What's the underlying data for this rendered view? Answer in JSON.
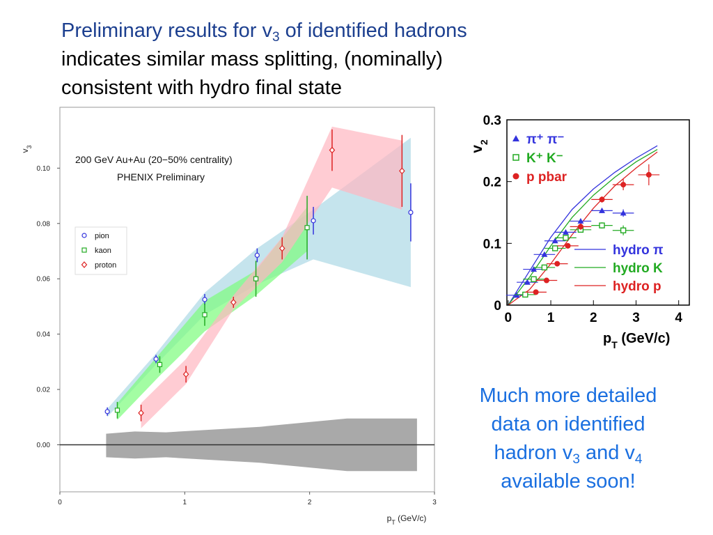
{
  "slide": {
    "title_line1_pre": "Preliminary results for v",
    "title_line1_sub": "3",
    "title_line1_post": " of identified hadrons",
    "title_line2": "indicates similar mass splitting, (nominally)",
    "title_line3": "consistent with hydro final state",
    "note_line1": "Much more detailed",
    "note_line2": "data on identified",
    "note_line3_pre": "hadron v",
    "note_line3_sub1": "3",
    "note_line3_mid": " and v",
    "note_line3_sub2": "4",
    "note_line4": "available soon!"
  },
  "colors": {
    "title": "#1c3f8f",
    "note": "#1a6fe0",
    "pion": "#3333dd",
    "kaon": "#22aa22",
    "proton": "#dd2222",
    "pion_band": "#add8e6",
    "kaon_band": "#7cfc7c",
    "proton_band": "#ffb6c1",
    "syst_band": "#a9a9a9"
  },
  "chart_data": [
    {
      "type": "scatter",
      "annotation1": "200 GeV Au+Au (20−50% centrality)",
      "annotation2": "PHENIX Preliminary",
      "xlabel": "p",
      "xlabel_sub": "T",
      "xlabel_unit": " (GeV/c)",
      "ylabel": "v",
      "ylabel_sub": "3",
      "xlim": [
        0,
        3
      ],
      "ylim": [
        -0.017,
        0.122
      ],
      "xticks": [
        0,
        1,
        2,
        3
      ],
      "yticks": [
        "0.00",
        "0.02",
        "0.04",
        "0.06",
        "0.08",
        "0.10"
      ],
      "legend": {
        "position": "center-left",
        "entries": [
          "pion",
          "kaon",
          "proton"
        ]
      },
      "series": [
        {
          "name": "pion",
          "marker": "circle",
          "x": [
            0.38,
            0.77,
            1.16,
            1.58,
            2.03,
            2.81
          ],
          "y": [
            0.012,
            0.031,
            0.0525,
            0.0685,
            0.081,
            0.084
          ],
          "err": [
            0.0015,
            0.0015,
            0.002,
            0.0025,
            0.005,
            0.0105
          ]
        },
        {
          "name": "kaon",
          "marker": "square",
          "x": [
            0.46,
            0.8,
            1.16,
            1.57,
            1.98
          ],
          "y": [
            0.0125,
            0.029,
            0.047,
            0.06,
            0.0785
          ],
          "err": [
            0.003,
            0.003,
            0.004,
            0.0065,
            0.0115
          ]
        },
        {
          "name": "proton",
          "marker": "diamond",
          "x": [
            0.65,
            1.01,
            1.39,
            1.78,
            2.18,
            2.74
          ],
          "y": [
            0.0115,
            0.0255,
            0.0515,
            0.071,
            0.1065,
            0.099
          ],
          "err": [
            0.003,
            0.003,
            0.002,
            0.004,
            0.0075,
            0.013
          ]
        }
      ],
      "bands": [
        {
          "name": "pion",
          "x": [
            0.38,
            0.77,
            1.16,
            1.58,
            2.03,
            2.81
          ],
          "lo": [
            0.01,
            0.029,
            0.047,
            0.058,
            0.067,
            0.057
          ],
          "hi": [
            0.013,
            0.033,
            0.055,
            0.071,
            0.085,
            0.111
          ]
        },
        {
          "name": "kaon",
          "x": [
            0.46,
            0.8,
            1.16,
            1.57,
            1.98
          ],
          "lo": [
            0.009,
            0.025,
            0.041,
            0.054,
            0.07
          ],
          "hi": [
            0.015,
            0.033,
            0.052,
            0.063,
            0.086
          ]
        },
        {
          "name": "proton",
          "x": [
            0.65,
            1.01,
            1.39,
            1.78,
            2.18,
            2.74
          ],
          "lo": [
            0.006,
            0.022,
            0.049,
            0.066,
            0.093,
            0.085
          ],
          "hi": [
            0.015,
            0.031,
            0.054,
            0.075,
            0.115,
            0.11
          ]
        },
        {
          "name": "systematic",
          "x": [
            0.37,
            0.6,
            0.85,
            1.6,
            2.3,
            2.86
          ],
          "lo": [
            -0.0045,
            -0.005,
            -0.0045,
            -0.0065,
            -0.0095,
            -0.0095
          ],
          "hi": [
            0.004,
            0.0048,
            0.0045,
            0.0065,
            0.0095,
            0.0095
          ]
        }
      ]
    },
    {
      "type": "scatter",
      "xlabel": "p",
      "xlabel_sub": "T",
      "xlabel_unit": " (GeV/c)",
      "ylabel": "v",
      "ylabel_sub": "2",
      "xlim": [
        -0.03,
        4.25
      ],
      "ylim": [
        0,
        0.3
      ],
      "xticks": [
        "0",
        "1",
        "2",
        "3",
        "4"
      ],
      "yticks": [
        "0",
        "0.1",
        "0.2",
        "0.3"
      ],
      "legend": {
        "position": "top-left",
        "entries": [
          {
            "label": "π⁺ π⁻",
            "marker": "triangle"
          },
          {
            "label": "K⁺ K⁻",
            "marker": "open-square"
          },
          {
            "label": "p  pbar",
            "marker": "circle"
          }
        ]
      },
      "legend2": {
        "position": "bottom-right",
        "entries": [
          "hydro π",
          "hydro K",
          "hydro p"
        ]
      },
      "series": [
        {
          "name": "π⁺ π⁻",
          "marker": "triangle",
          "x": [
            0.2,
            0.45,
            0.6,
            0.85,
            1.1,
            1.35,
            1.7,
            2.2,
            2.7
          ],
          "y": [
            0.016,
            0.037,
            0.058,
            0.082,
            0.104,
            0.118,
            0.136,
            0.153,
            0.149
          ],
          "err": [
            0.001,
            0.001,
            0.002,
            0.002,
            0.002,
            0.003,
            0.003,
            0.004,
            0.006
          ]
        },
        {
          "name": "K⁺ K⁻",
          "marker": "open-square",
          "x": [
            0.4,
            0.6,
            0.85,
            1.1,
            1.35,
            1.7,
            2.2,
            2.7
          ],
          "y": [
            0.017,
            0.042,
            0.061,
            0.092,
            0.109,
            0.122,
            0.129,
            0.121
          ],
          "err": [
            0.001,
            0.002,
            0.002,
            0.003,
            0.003,
            0.004,
            0.005,
            0.008
          ]
        },
        {
          "name": "p  pbar",
          "marker": "circle",
          "x": [
            0.65,
            0.9,
            1.15,
            1.4,
            1.7,
            2.2,
            2.7,
            3.3
          ],
          "y": [
            0.021,
            0.04,
            0.067,
            0.096,
            0.127,
            0.171,
            0.195,
            0.211
          ],
          "err": [
            0.002,
            0.002,
            0.003,
            0.004,
            0.005,
            0.005,
            0.009,
            0.017
          ]
        }
      ],
      "curves": [
        {
          "name": "hydro π",
          "x": [
            0,
            0.5,
            1,
            1.5,
            2,
            2.5,
            3,
            3.5
          ],
          "y": [
            0,
            0.055,
            0.11,
            0.155,
            0.188,
            0.215,
            0.238,
            0.258
          ]
        },
        {
          "name": "hydro K",
          "x": [
            0,
            0.5,
            1,
            1.5,
            2,
            2.5,
            3,
            3.5
          ],
          "y": [
            0,
            0.045,
            0.096,
            0.142,
            0.178,
            0.207,
            0.232,
            0.252
          ]
        },
        {
          "name": "hydro p",
          "x": [
            0,
            0.5,
            1,
            1.5,
            2,
            2.5,
            3,
            3.5
          ],
          "y": [
            0,
            0.025,
            0.067,
            0.114,
            0.157,
            0.193,
            0.222,
            0.248
          ]
        }
      ]
    }
  ]
}
